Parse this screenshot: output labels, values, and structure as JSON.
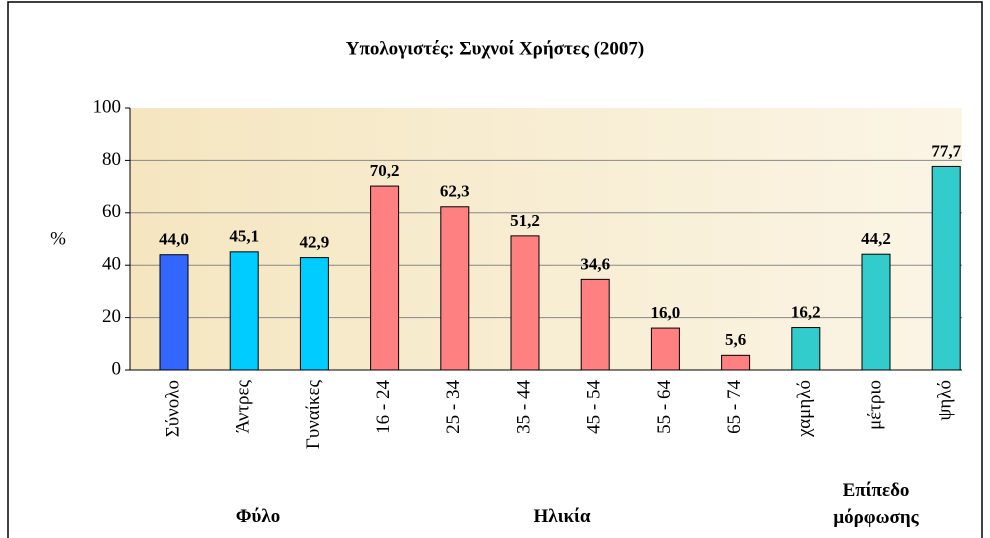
{
  "chart_data": {
    "type": "bar",
    "title": "Υπολογιστές: Συχνοί Χρήστες  (2007)",
    "ylabel": "%",
    "categories": [
      "Σύνολο",
      "Άντρες",
      "Γυναίκες",
      "16 - 24",
      "25 - 34",
      "35 - 44",
      "45 - 54",
      "55 - 64",
      "65 - 74",
      "χαμηλό",
      "μέτριο",
      "ψηλό"
    ],
    "values": [
      44.0,
      45.1,
      42.9,
      70.2,
      62.3,
      51.2,
      34.6,
      16.0,
      5.6,
      16.2,
      44.2,
      77.7
    ],
    "value_labels": [
      "44,0",
      "45,1",
      "42,9",
      "70,2",
      "62,3",
      "51,2",
      "34,6",
      "16,0",
      "5,6",
      "16,2",
      "44,2",
      "77,7"
    ],
    "colors": [
      "#3366ff",
      "#00ccff",
      "#00ccff",
      "#ff8080",
      "#ff8080",
      "#ff8080",
      "#ff8080",
      "#ff8080",
      "#ff8080",
      "#33cccc",
      "#33cccc",
      "#33cccc"
    ],
    "group_labels": [
      "Φύλο",
      "Ηλικία",
      "Επίπεδο μόρφωσης"
    ],
    "ylim": [
      0,
      100
    ],
    "yticks": [
      0,
      20,
      40,
      60,
      80,
      100
    ],
    "grid": true
  }
}
